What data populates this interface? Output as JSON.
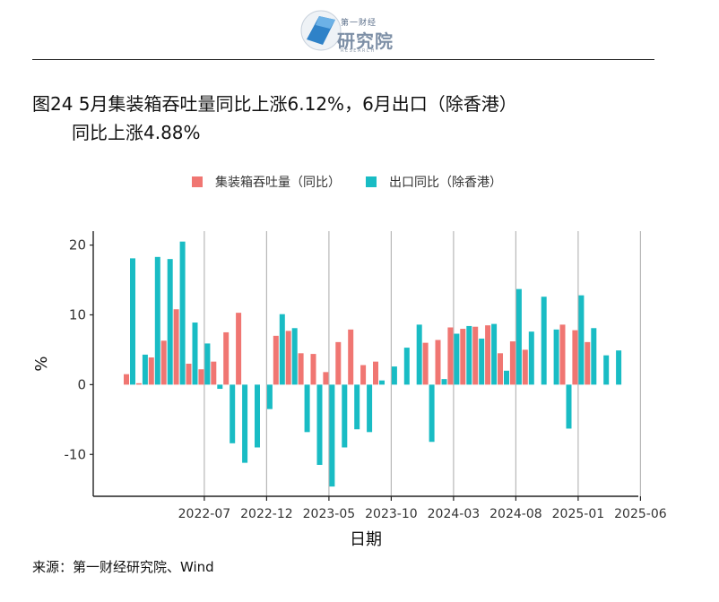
{
  "header": {
    "brand_top": "第一财经",
    "brand_name": "研究院",
    "brand_sub": "RESEARCH",
    "logo_icon": "brand-logo-icon"
  },
  "title": {
    "line1": "图24 5月集装箱吞吐量同比上涨6.12%，6月出口（除香港）",
    "line2": "同比上涨4.88%"
  },
  "legend": {
    "items": [
      {
        "label": "集装箱吞吐量（同比）",
        "color": "#F07672"
      },
      {
        "label": "出口同比（除香港）",
        "color": "#19BCC4"
      }
    ]
  },
  "source": "来源：第一财经研究院、Wind",
  "chart_data": {
    "type": "bar",
    "xlabel": "日期",
    "ylabel": "%",
    "ylim": [
      -16,
      22
    ],
    "yticks": [
      -10,
      0,
      10,
      20
    ],
    "xticks": [
      "2022-07",
      "2022-12",
      "2023-05",
      "2023-10",
      "2024-03",
      "2024-08",
      "2025-01",
      "2025-06"
    ],
    "grid": "vertical lines at x ticks",
    "legend_position": "top",
    "categories": [
      "2022-01",
      "2022-02",
      "2022-03",
      "2022-04",
      "2022-05",
      "2022-06",
      "2022-07",
      "2022-08",
      "2022-09",
      "2022-10",
      "2022-11",
      "2022-12",
      "2023-01",
      "2023-02",
      "2023-03",
      "2023-04",
      "2023-05",
      "2023-06",
      "2023-07",
      "2023-08",
      "2023-09",
      "2023-10",
      "2023-11",
      "2023-12",
      "2024-01",
      "2024-02",
      "2024-03",
      "2024-04",
      "2024-05",
      "2024-06",
      "2024-07",
      "2024-08",
      "2024-09",
      "2024-10",
      "2024-11",
      "2024-12",
      "2025-01",
      "2025-02",
      "2025-03",
      "2025-04",
      "2025-05",
      "2025-06"
    ],
    "series": [
      {
        "name": "集装箱吞吐量（同比）",
        "color": "#F07672",
        "values": [
          1.5,
          0.2,
          3.9,
          6.3,
          10.8,
          3.0,
          2.2,
          3.3,
          7.5,
          10.3,
          null,
          null,
          7.0,
          7.7,
          4.5,
          4.4,
          1.8,
          6.1,
          7.9,
          2.8,
          3.3,
          null,
          null,
          null,
          6.0,
          6.4,
          8.2,
          8.0,
          8.3,
          8.5,
          4.5,
          6.2,
          5.0,
          null,
          null,
          8.6,
          7.8,
          6.1,
          null,
          null,
          null,
          null
        ]
      },
      {
        "name": "出口同比（除香港）",
        "color": "#19BCC4",
        "values": [
          18.1,
          4.3,
          18.3,
          18.0,
          20.5,
          8.9,
          5.9,
          -0.6,
          -8.4,
          -11.2,
          -9.0,
          -3.5,
          10.1,
          8.1,
          -6.8,
          -11.5,
          -14.6,
          -9.0,
          -6.4,
          -6.8,
          0.6,
          2.6,
          5.3,
          8.6,
          -8.2,
          0.8,
          7.3,
          8.4,
          6.6,
          8.7,
          2.0,
          13.7,
          7.6,
          12.6,
          7.9,
          -6.3,
          12.8,
          8.1,
          4.2,
          4.9,
          null,
          null
        ]
      }
    ]
  }
}
